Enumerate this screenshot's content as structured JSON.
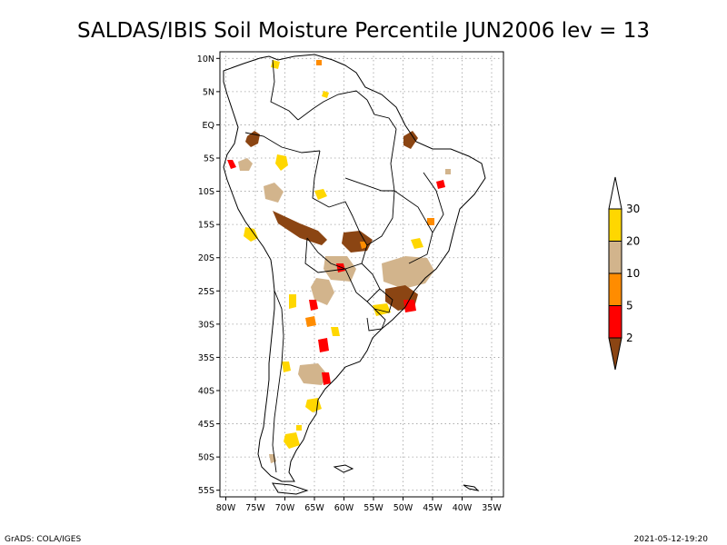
{
  "map": {
    "title": "SALDAS/IBIS Soil Moisture Percentile JUN2006 lev = 13",
    "lat_ticks": [
      "10N",
      "5N",
      "EQ",
      "5S",
      "10S",
      "15S",
      "20S",
      "25S",
      "30S",
      "35S",
      "40S",
      "45S",
      "50S",
      "55S"
    ],
    "lon_ticks": [
      "80W",
      "75W",
      "70W",
      "65W",
      "60W",
      "55W",
      "50W",
      "45W",
      "40W",
      "35W"
    ],
    "lon_range": [
      -81,
      -33
    ],
    "lat_range": [
      -56,
      11
    ],
    "grid": true,
    "background": "#ffffff"
  },
  "legend": {
    "placement": "right",
    "labels": [
      "2",
      "5",
      "10",
      "20",
      "30"
    ],
    "bins": [
      {
        "name": "below-2",
        "color": "#8b4513"
      },
      {
        "name": "2-5",
        "color": "#ff0000"
      },
      {
        "name": "5-10",
        "color": "#ff8c00"
      },
      {
        "name": "10-20",
        "color": "#d2b48c"
      },
      {
        "name": "20-30",
        "color": "#ffd700"
      },
      {
        "name": "above-30",
        "color": "#ffffff"
      }
    ]
  },
  "footer": {
    "left": "GrADS: COLA/IGES",
    "right": "2021-05-12-19:20"
  }
}
